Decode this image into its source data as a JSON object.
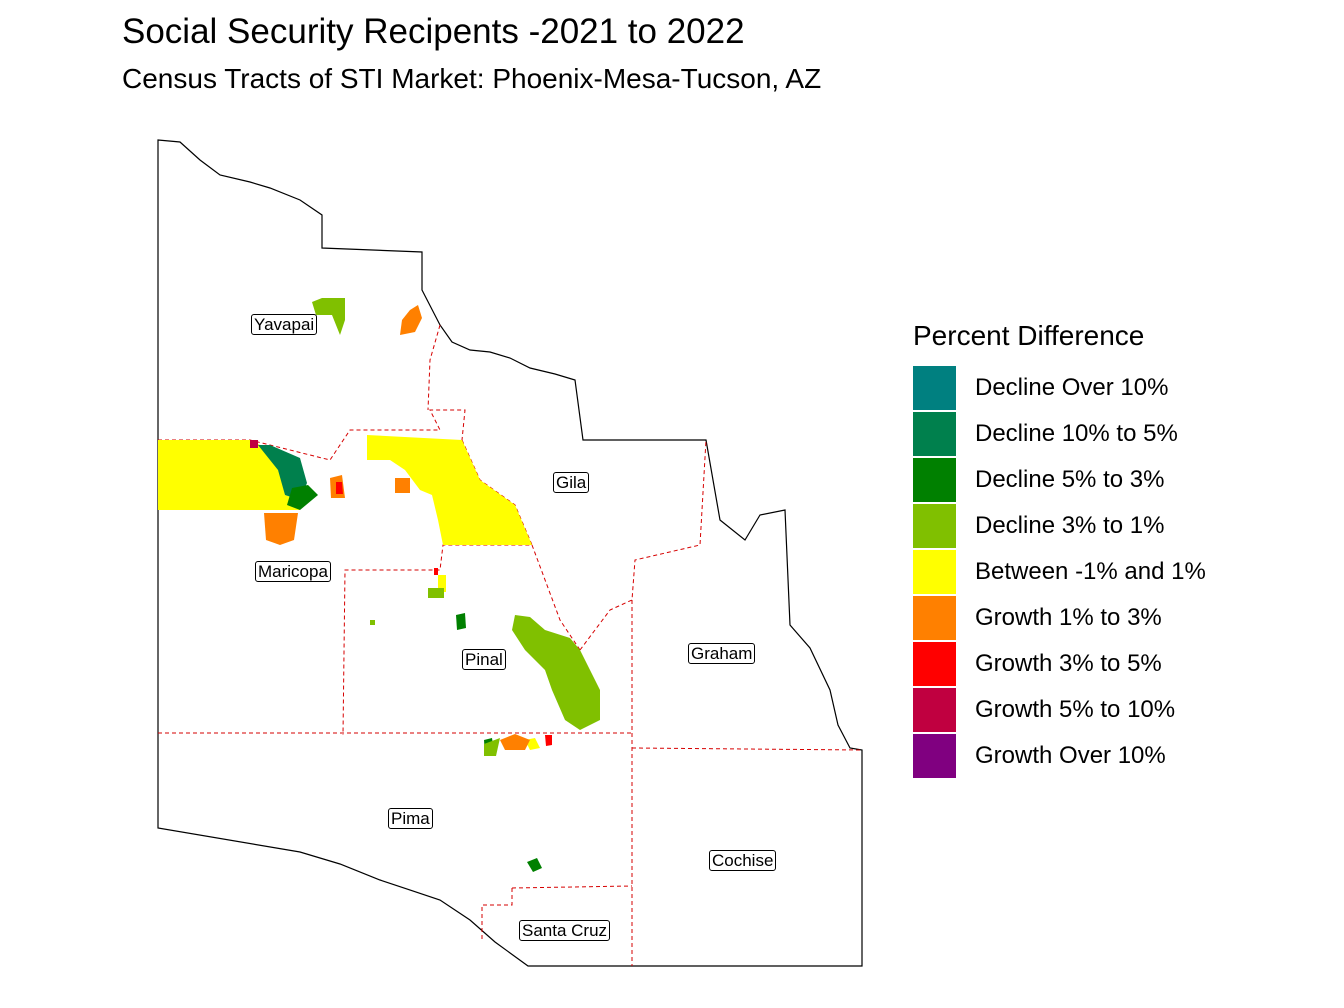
{
  "title": "Social Security Recipents -2021 to 2022",
  "subtitle": "Census Tracts of STI Market: Phoenix-Mesa-Tucson, AZ",
  "legend": {
    "title": "Percent Difference",
    "items": [
      {
        "label": "Decline Over 10%",
        "color": "#008080"
      },
      {
        "label": "Decline 10% to 5%",
        "color": "#00804D"
      },
      {
        "label": "Decline 5% to 3%",
        "color": "#008000"
      },
      {
        "label": "Decline 3% to 1%",
        "color": "#80C000"
      },
      {
        "label": "Between -1% and 1%",
        "color": "#FFFF00"
      },
      {
        "label": "Growth 1% to 3%",
        "color": "#FF8000"
      },
      {
        "label": "Growth 3% to 5%",
        "color": "#FF0000"
      },
      {
        "label": "Growth 5% to 10%",
        "color": "#C00040"
      },
      {
        "label": "Growth Over 10%",
        "color": "#800080"
      }
    ]
  },
  "counties": [
    "Yavapai",
    "Gila",
    "Maricopa",
    "Pinal",
    "Graham",
    "Pima",
    "Cochise",
    "Santa Cruz"
  ]
}
